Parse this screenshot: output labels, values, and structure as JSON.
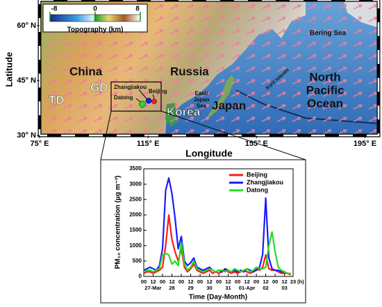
{
  "map": {
    "xlabel": "Longitude",
    "ylabel": "Latitude",
    "xlim": [
      75,
      200
    ],
    "ylim": [
      30,
      67
    ],
    "xticks": [
      {
        "value": 75,
        "label": "75° E"
      },
      {
        "value": 115,
        "label": "115° E"
      },
      {
        "value": 155,
        "label": "155° E"
      },
      {
        "value": 195,
        "label": "195° E"
      }
    ],
    "yticks": [
      {
        "value": 30,
        "label": "30° N"
      },
      {
        "value": 45,
        "label": "45° N"
      },
      {
        "value": 60,
        "label": "60° N"
      }
    ],
    "colorbar": {
      "label": "Topography (km)",
      "lim": [
        -8,
        8
      ],
      "ticks": [
        -8,
        0,
        8
      ]
    },
    "labels": [
      "China",
      "Russia",
      "TD",
      "GD",
      "Korea",
      "Japan",
      "North",
      "Pacific",
      "Ocean",
      "Bering Sea",
      "Kuril Islands",
      "East/",
      "Japan",
      "Sea",
      "Zhangjiakou",
      "Datong",
      "Beijing"
    ]
  },
  "chart_data": {
    "type": "line",
    "xlabel": "Time (Day-Month)",
    "ylabel": "PM₁₀ concentration (μg m⁻³)",
    "x_unit": "(h)",
    "x": [
      0,
      4,
      8,
      12,
      16,
      20,
      24,
      28,
      32,
      36,
      40,
      44,
      48,
      52,
      56,
      60,
      64,
      68,
      72,
      76,
      80,
      84,
      88,
      92,
      96,
      100,
      104,
      108,
      112,
      116,
      120,
      124,
      128,
      132,
      136,
      140,
      144,
      148,
      152,
      156,
      160,
      164,
      168,
      172,
      176,
      180,
      184,
      188
    ],
    "xlim": [
      0,
      191
    ],
    "xticks": [
      {
        "value": 0,
        "label": "00"
      },
      {
        "value": 12,
        "label": "12"
      },
      {
        "value": 24,
        "label": "00"
      },
      {
        "value": 36,
        "label": "12"
      },
      {
        "value": 48,
        "label": "00"
      },
      {
        "value": 60,
        "label": "12"
      },
      {
        "value": 72,
        "label": "00"
      },
      {
        "value": 84,
        "label": "12"
      },
      {
        "value": 96,
        "label": "00"
      },
      {
        "value": 108,
        "label": "12"
      },
      {
        "value": 120,
        "label": "00"
      },
      {
        "value": 132,
        "label": "12"
      },
      {
        "value": 144,
        "label": "00"
      },
      {
        "value": 156,
        "label": "12"
      },
      {
        "value": 168,
        "label": "00"
      },
      {
        "value": 180,
        "label": "12"
      },
      {
        "value": 191,
        "label": "23"
      }
    ],
    "day_ticks": [
      {
        "value": 12,
        "label": "27-Mar"
      },
      {
        "value": 36,
        "label": "28"
      },
      {
        "value": 60,
        "label": "29"
      },
      {
        "value": 84,
        "label": "30"
      },
      {
        "value": 108,
        "label": "31"
      },
      {
        "value": 132,
        "label": "01-Apr"
      },
      {
        "value": 156,
        "label": "02"
      },
      {
        "value": 180,
        "label": "03"
      }
    ],
    "ylim": [
      0,
      3500
    ],
    "yticks": [
      0,
      500,
      1000,
      1500,
      2000,
      2500,
      3000,
      3500
    ],
    "series": [
      {
        "name": "Beijing",
        "color": "#ff1a1a",
        "values": [
          100,
          150,
          150,
          100,
          150,
          200,
          300,
          1000,
          2000,
          1200,
          800,
          500,
          900,
          300,
          150,
          250,
          400,
          200,
          150,
          100,
          150,
          200,
          100,
          150,
          100,
          150,
          200,
          150,
          100,
          150,
          100,
          150,
          200,
          150,
          100,
          150,
          250,
          200,
          300,
          700,
          250,
          200,
          200,
          150,
          100,
          100,
          100,
          50
        ]
      },
      {
        "name": "Zhangjiakou",
        "color": "#1a1aff",
        "values": [
          200,
          250,
          300,
          250,
          200,
          350,
          900,
          2800,
          3200,
          2700,
          1900,
          900,
          1300,
          500,
          350,
          450,
          600,
          300,
          250,
          200,
          250,
          300,
          200,
          150,
          200,
          150,
          250,
          200,
          150,
          200,
          150,
          200,
          150,
          250,
          200,
          150,
          200,
          300,
          700,
          2550,
          600,
          250,
          200,
          200,
          150,
          150,
          100,
          100
        ]
      },
      {
        "name": "Datong",
        "color": "#22dd22",
        "values": [
          150,
          200,
          200,
          150,
          200,
          250,
          700,
          750,
          700,
          400,
          500,
          350,
          1100,
          400,
          200,
          300,
          500,
          250,
          200,
          150,
          200,
          250,
          200,
          150,
          200,
          200,
          150,
          200,
          150,
          250,
          200,
          150,
          200,
          250,
          150,
          200,
          300,
          250,
          250,
          300,
          1000,
          1450,
          800,
          300,
          200,
          150,
          100,
          100
        ]
      }
    ],
    "legend": "upper right"
  }
}
